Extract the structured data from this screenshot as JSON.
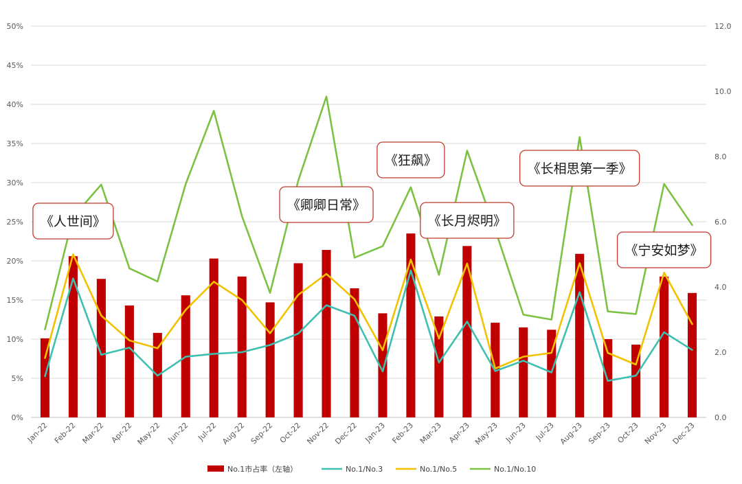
{
  "chart_data": {
    "type": "bar",
    "title": "",
    "categories": [
      "Jan-22",
      "Feb-22",
      "Mar-22",
      "Apr-22",
      "May-22",
      "Jun-22",
      "Jul-22",
      "Aug-22",
      "Sep-22",
      "Oct-22",
      "Nov-22",
      "Dec-22",
      "Jan-23",
      "Feb-23",
      "Mar-23",
      "Apr-23",
      "May-23",
      "Jun-23",
      "Jul-23",
      "Aug-23",
      "Sep-23",
      "Oct-23",
      "Nov-23",
      "Dec-23"
    ],
    "y_left": {
      "min": 0,
      "max": 50,
      "step": 5,
      "ticks": [
        "0%",
        "5%",
        "10%",
        "15%",
        "20%",
        "25%",
        "30%",
        "35%",
        "40%",
        "45%",
        "50%"
      ]
    },
    "y_right": {
      "min": 0,
      "max": 12,
      "step": 2,
      "ticks": [
        "0.0",
        "2.0",
        "4.0",
        "6.0",
        "8.0",
        "10.0",
        "12.0"
      ]
    },
    "grid": true,
    "legend_position": "bottom",
    "series": [
      {
        "name": "No.1市占率（左轴）",
        "type": "bar",
        "axis": "left",
        "color": "#c00000",
        "values": [
          10.1,
          20.6,
          17.7,
          14.3,
          10.8,
          15.6,
          20.3,
          18.0,
          14.7,
          19.7,
          21.4,
          16.5,
          13.3,
          23.5,
          12.9,
          21.9,
          12.1,
          11.5,
          11.2,
          20.9,
          10.0,
          9.3,
          18.0,
          15.9
        ]
      },
      {
        "name": "No.1/No.3",
        "type": "line",
        "axis": "right",
        "color": "#3fbfb0",
        "values": [
          1.26,
          4.26,
          1.92,
          2.14,
          1.28,
          1.86,
          1.95,
          2.0,
          2.22,
          2.57,
          3.44,
          3.12,
          1.41,
          4.51,
          1.68,
          2.94,
          1.42,
          1.74,
          1.38,
          3.84,
          1.12,
          1.28,
          2.61,
          2.07
        ]
      },
      {
        "name": "No.1/No.5",
        "type": "line",
        "axis": "right",
        "color": "#f2c200",
        "values": [
          1.82,
          5.0,
          3.12,
          2.36,
          2.12,
          3.3,
          4.16,
          3.6,
          2.58,
          3.76,
          4.4,
          3.62,
          2.06,
          4.84,
          2.42,
          4.72,
          1.5,
          1.86,
          1.98,
          4.73,
          1.98,
          1.62,
          4.44,
          2.86
        ]
      },
      {
        "name": "No.1/No.10",
        "type": "line",
        "axis": "right",
        "color": "#7cc242",
        "values": [
          2.7,
          6.15,
          7.14,
          4.57,
          4.17,
          7.16,
          9.4,
          6.17,
          3.82,
          7.26,
          9.84,
          4.9,
          5.25,
          7.06,
          4.37,
          8.18,
          5.76,
          3.15,
          3.0,
          8.6,
          3.25,
          3.17,
          7.16,
          5.9
        ]
      }
    ],
    "annotations": [
      {
        "text": "《人世间》",
        "month": "Feb-22"
      },
      {
        "text": "《卿卿日常》",
        "month": "Nov-22"
      },
      {
        "text": "《狂飙》",
        "month": "Feb-23"
      },
      {
        "text": "《长月烬明》",
        "month": "Apr-23"
      },
      {
        "text": "《长相思第一季》",
        "month": "Aug-23"
      },
      {
        "text": "《宁安如梦》",
        "month": "Nov-23"
      }
    ]
  }
}
